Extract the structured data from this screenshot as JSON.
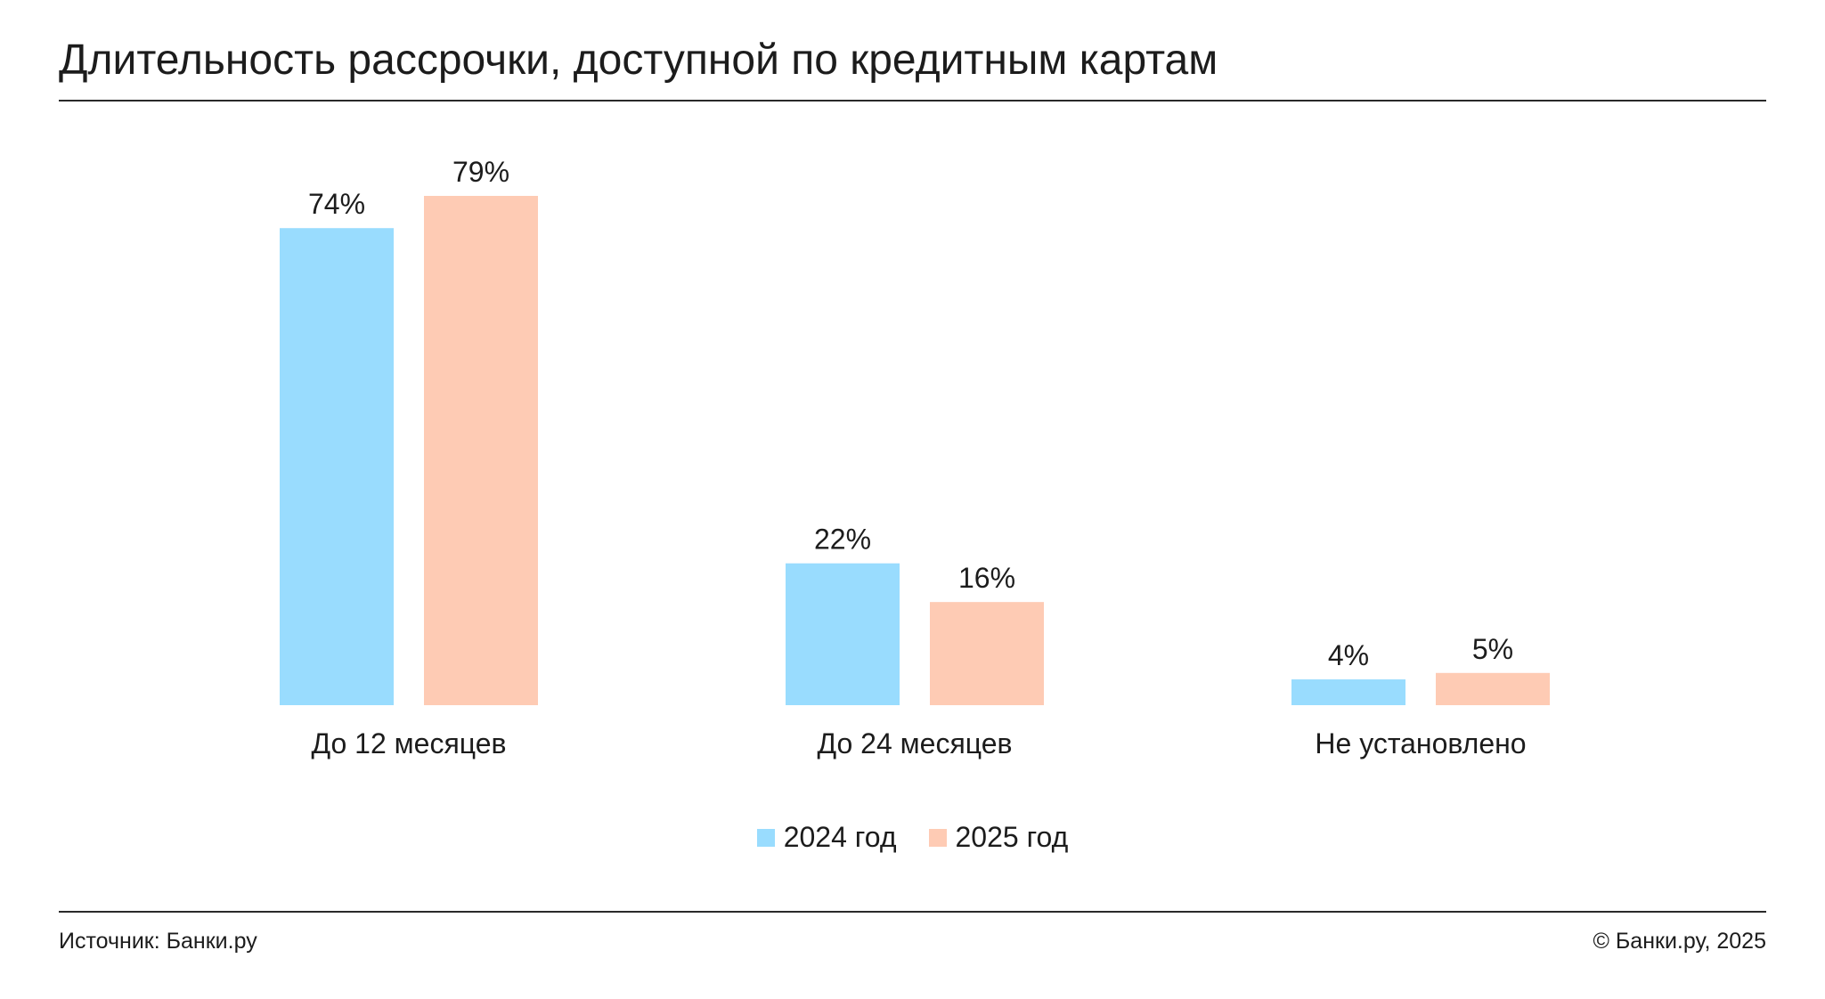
{
  "header": {
    "title": "Длительность рассрочки, доступной по кредитным картам"
  },
  "chart_data": {
    "type": "bar",
    "categories": [
      "До 12 месяцев",
      "До 24 месяцев",
      "Не установлено"
    ],
    "series": [
      {
        "name": "2024 год",
        "values": [
          74,
          22,
          4
        ],
        "labels": [
          "74%",
          "22%",
          "4%"
        ],
        "color": "#99dcfe"
      },
      {
        "name": "2025 год",
        "values": [
          79,
          16,
          5
        ],
        "labels": [
          "79%",
          "16%",
          "5%"
        ],
        "color": "#fecbb4"
      }
    ],
    "unit": "%",
    "ylim": [
      0,
      79
    ],
    "grid": false,
    "legend_position": "bottom-center"
  },
  "footer": {
    "source": "Источник: Банки.ру",
    "copyright": "© Банки.ру, 2025"
  }
}
